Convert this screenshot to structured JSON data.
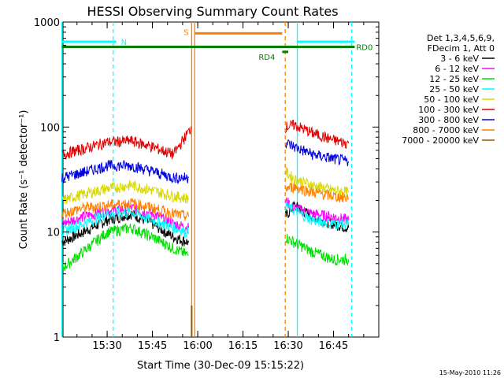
{
  "chart_data": {
    "type": "line",
    "title": "HESSI Observing Summary Count Rates",
    "xlabel": "Start Time (30-Dec-09 15:15:22)",
    "ylabel": "Count Rate (s⁻¹ detector⁻¹)",
    "yscale": "log",
    "ylim": [
      1,
      1000
    ],
    "xlim": [
      "15:15:22",
      "17:00:00"
    ],
    "x_ticks": [
      "15:30",
      "15:45",
      "16:00",
      "16:15",
      "16:30",
      "16:45"
    ],
    "y_ticks": [
      "1",
      "10",
      "100",
      "1000"
    ],
    "legend_header": [
      "Det 1,3,4,5,6,9,",
      "FDecim 1, Att 0"
    ],
    "legend_position": "top-right outside",
    "data_gap": [
      "15:59",
      "16:29"
    ],
    "series": [
      {
        "name": "3 - 6 keV",
        "color": "#000000",
        "x": [
          "15:15",
          "15:22",
          "15:30",
          "15:38",
          "15:45",
          "15:52",
          "15:57",
          "16:29",
          "16:32",
          "16:38",
          "16:45",
          "16:50"
        ],
        "values": [
          8,
          10,
          13,
          15,
          12,
          9,
          8,
          14,
          18,
          14,
          12,
          11
        ]
      },
      {
        "name": "6 - 12 keV",
        "color": "#ff00ff",
        "x": [
          "15:15",
          "15:22",
          "15:30",
          "15:38",
          "15:45",
          "15:52",
          "15:57",
          "16:29",
          "16:32",
          "16:38",
          "16:45",
          "16:50"
        ],
        "values": [
          12,
          14,
          16,
          17,
          15,
          12,
          11,
          20,
          17,
          15,
          14,
          13
        ]
      },
      {
        "name": "12 - 25 keV",
        "color": "#00e000",
        "x": [
          "15:15",
          "15:22",
          "15:30",
          "15:38",
          "15:45",
          "15:52",
          "15:57",
          "16:29",
          "16:32",
          "16:38",
          "16:45",
          "16:50"
        ],
        "values": [
          4.5,
          6.5,
          10,
          11,
          9,
          7,
          6,
          9,
          8,
          6.5,
          5.5,
          5.5
        ]
      },
      {
        "name": "25 - 50 keV",
        "color": "#00ffff",
        "x": [
          "15:15",
          "15:22",
          "15:30",
          "15:38",
          "15:45",
          "15:52",
          "15:57",
          "16:29",
          "16:32",
          "16:38",
          "16:45",
          "16:50"
        ],
        "values": [
          10,
          12,
          15,
          15.5,
          13,
          11,
          10,
          18,
          16,
          13,
          12,
          12
        ]
      },
      {
        "name": "50 - 100 keV",
        "color": "#d8d800",
        "x": [
          "15:15",
          "15:22",
          "15:30",
          "15:38",
          "15:45",
          "15:52",
          "15:57",
          "16:29",
          "16:32",
          "16:38",
          "16:45",
          "16:50"
        ],
        "values": [
          20,
          23,
          26,
          28,
          25,
          22,
          21,
          38,
          32,
          28,
          25,
          24
        ]
      },
      {
        "name": "100 - 300 keV",
        "color": "#e00000",
        "x": [
          "15:15",
          "15:22",
          "15:30",
          "15:38",
          "15:45",
          "15:52",
          "15:58",
          "16:29",
          "16:32",
          "16:38",
          "16:45",
          "16:50"
        ],
        "values": [
          55,
          62,
          72,
          74,
          65,
          55,
          100,
          100,
          105,
          88,
          75,
          70
        ]
      },
      {
        "name": "300 - 800 keV",
        "color": "#0000e0",
        "x": [
          "15:15",
          "15:22",
          "15:30",
          "15:38",
          "15:45",
          "15:52",
          "15:57",
          "16:29",
          "16:32",
          "16:38",
          "16:45",
          "16:50"
        ],
        "values": [
          33,
          37,
          43,
          43,
          38,
          33,
          33,
          72,
          65,
          55,
          50,
          47
        ]
      },
      {
        "name": "800 - 7000 keV",
        "color": "#ff8000",
        "x": [
          "15:15",
          "15:22",
          "15:30",
          "15:38",
          "15:45",
          "15:52",
          "15:57",
          "16:29",
          "16:32",
          "16:38",
          "16:45",
          "16:50"
        ],
        "values": [
          15,
          17,
          18,
          19,
          17,
          15,
          14,
          26,
          27,
          24,
          22,
          21
        ]
      },
      {
        "name": "7000 - 20000 keV",
        "color": "#8b5a00",
        "x": [
          "15:58"
        ],
        "values": [
          2
        ]
      }
    ],
    "annotations": [
      {
        "text": "N",
        "color": "#00ffff",
        "y": 650,
        "x_from": "15:15",
        "x_to": "15:33"
      },
      {
        "text": "S",
        "color": "#ff8000",
        "y": 780,
        "x_from": "15:59",
        "x_to": "16:28"
      },
      {
        "text": "RD0",
        "color": "#008000",
        "y": 580,
        "x_from": "15:15",
        "x_to": "16:52"
      },
      {
        "text": "RD4",
        "color": "#008000",
        "y": 520,
        "x_from": "16:28",
        "x_to": "16:30"
      },
      {
        "text": "",
        "color": "#00ffff",
        "y": 650,
        "x_from": "16:33",
        "x_to": "16:52"
      }
    ],
    "vertical_markers": [
      {
        "x": "15:15",
        "color": "#00ffff",
        "style": "solid"
      },
      {
        "x": "15:32",
        "color": "#00ffff",
        "style": "dashed"
      },
      {
        "x": "15:58",
        "color": "#ff8000",
        "style": "solid"
      },
      {
        "x": "15:59",
        "color": "#ff8000",
        "style": "solid"
      },
      {
        "x": "16:29",
        "color": "#ff8000",
        "style": "dashed"
      },
      {
        "x": "16:33",
        "color": "#00ffff",
        "style": "solid"
      },
      {
        "x": "16:51",
        "color": "#00ffff",
        "style": "dashed"
      }
    ]
  },
  "footer_timestamp": "15-May-2010 11:26"
}
